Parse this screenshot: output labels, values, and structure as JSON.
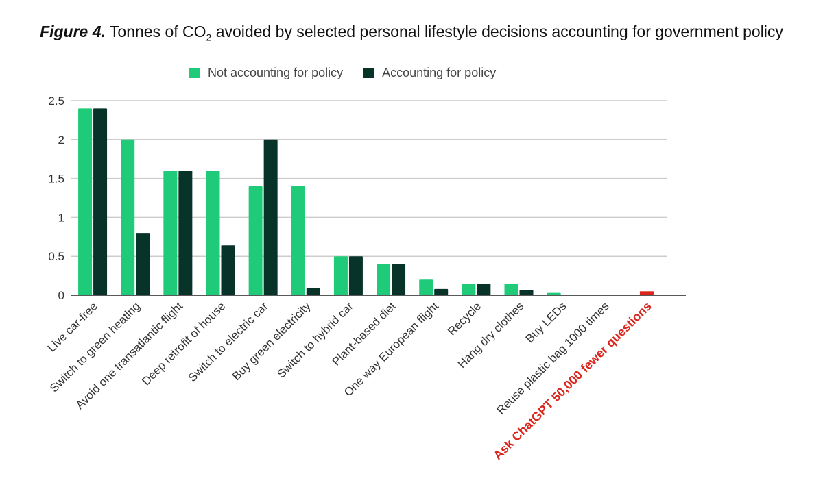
{
  "figure": {
    "label": "Figure 4.",
    "title_pre": " Tonnes of CO",
    "title_sub": "2",
    "title_post": " avoided by selected personal lifestyle decisions accounting for government policy"
  },
  "colors": {
    "not_policy": "#1fcb78",
    "policy": "#073328",
    "highlight": "#d9251c",
    "grid": "#cccccc",
    "axis": "#222222",
    "tick_text": "#333333"
  },
  "chart_data": {
    "type": "bar",
    "title": "Tonnes of CO2 avoided by selected personal lifestyle decisions accounting for government policy",
    "xlabel": "",
    "ylabel": "",
    "ylim": [
      0,
      2.5
    ],
    "yticks": [
      {
        "value": 0,
        "label": "0"
      },
      {
        "value": 0.5,
        "label": "0.5"
      },
      {
        "value": 1,
        "label": "1"
      },
      {
        "value": 1.5,
        "label": "1.5"
      },
      {
        "value": 2,
        "label": "2"
      },
      {
        "value": 2.5,
        "label": "2.5"
      }
    ],
    "grid": true,
    "legend_position": "top",
    "categories": [
      "Live car-free",
      "Switch to green heating",
      "Avoid one transatlantic flight",
      "Deep retrofit of house",
      "Switch to electric car",
      "Buy green electricity",
      "Switch to hybrid car",
      "Plant-based diet",
      "One way European flight",
      "Recycle",
      "Hang dry clothes",
      "Buy LEDs",
      "Reuse plastic bag 1000 times",
      "Ask ChatGPT 50,000 fewer questions"
    ],
    "highlight_category": "Ask ChatGPT 50,000 fewer questions",
    "series": [
      {
        "name": "Not accounting for policy",
        "color_key": "not_policy",
        "values": [
          2.4,
          2.0,
          1.6,
          1.6,
          1.4,
          1.4,
          0.5,
          0.4,
          0.2,
          0.15,
          0.15,
          0.03,
          0.0,
          0.0
        ]
      },
      {
        "name": "Accounting for policy",
        "color_key": "policy",
        "values": [
          2.4,
          0.8,
          1.6,
          0.64,
          2.0,
          0.09,
          0.5,
          0.4,
          0.08,
          0.15,
          0.07,
          0.0,
          0.0,
          0.0
        ]
      }
    ],
    "highlight_value": 0.05
  }
}
